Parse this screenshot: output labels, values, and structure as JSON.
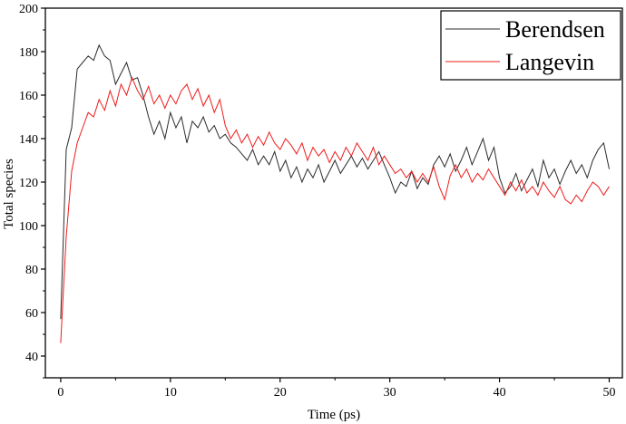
{
  "chart_data": {
    "type": "line",
    "title": "",
    "xlabel": "Time (ps)",
    "ylabel": "Total species",
    "xlim": [
      -1.4,
      51.2
    ],
    "ylim": [
      30,
      200
    ],
    "xticks": [
      0,
      10,
      20,
      30,
      40,
      50
    ],
    "yticks": [
      40,
      60,
      80,
      100,
      120,
      140,
      160,
      180,
      200
    ],
    "grid": false,
    "legend_position": "top-right",
    "x": [
      0,
      0.5,
      1,
      1.5,
      2,
      2.5,
      3,
      3.5,
      4,
      4.5,
      5,
      5.5,
      6,
      6.5,
      7,
      7.5,
      8,
      8.5,
      9,
      9.5,
      10,
      10.5,
      11,
      11.5,
      12,
      12.5,
      13,
      13.5,
      14,
      14.5,
      15,
      15.5,
      16,
      16.5,
      17,
      17.5,
      18,
      18.5,
      19,
      19.5,
      20,
      20.5,
      21,
      21.5,
      22,
      22.5,
      23,
      23.5,
      24,
      24.5,
      25,
      25.5,
      26,
      26.5,
      27,
      27.5,
      28,
      28.5,
      29,
      29.5,
      30,
      30.5,
      31,
      31.5,
      32,
      32.5,
      33,
      33.5,
      34,
      34.5,
      35,
      35.5,
      36,
      36.5,
      37,
      37.5,
      38,
      38.5,
      39,
      39.5,
      40,
      40.5,
      41,
      41.5,
      42,
      42.5,
      43,
      43.5,
      44,
      44.5,
      45,
      45.5,
      46,
      46.5,
      47,
      47.5,
      48,
      48.5,
      49,
      49.5,
      50
    ],
    "series": [
      {
        "name": "Berendsen",
        "color": "#2b2b2b",
        "values": [
          57,
          135,
          145,
          172,
          175,
          178,
          176,
          183,
          178,
          176,
          165,
          170,
          175,
          167,
          168,
          160,
          150,
          142,
          148,
          140,
          152,
          145,
          150,
          138,
          148,
          145,
          150,
          143,
          146,
          140,
          142,
          138,
          136,
          133,
          130,
          135,
          128,
          132,
          128,
          134,
          125,
          130,
          122,
          127,
          120,
          126,
          122,
          128,
          120,
          125,
          130,
          124,
          128,
          132,
          127,
          131,
          126,
          130,
          134,
          128,
          122,
          115,
          120,
          118,
          125,
          117,
          122,
          119,
          128,
          132,
          127,
          133,
          125,
          130,
          136,
          128,
          134,
          140,
          130,
          136,
          122,
          115,
          118,
          124,
          116,
          121,
          126,
          118,
          130,
          122,
          126,
          119,
          125,
          130,
          124,
          128,
          122,
          130,
          135,
          138,
          126
        ]
      },
      {
        "name": "Langevin",
        "color": "#ee1c1c",
        "values": [
          46,
          95,
          125,
          138,
          145,
          152,
          150,
          158,
          153,
          162,
          155,
          165,
          160,
          168,
          162,
          158,
          164,
          156,
          160,
          154,
          160,
          156,
          162,
          165,
          158,
          163,
          155,
          160,
          152,
          158,
          146,
          140,
          144,
          138,
          142,
          136,
          141,
          137,
          143,
          138,
          135,
          140,
          137,
          133,
          138,
          130,
          136,
          132,
          135,
          129,
          134,
          130,
          136,
          132,
          138,
          134,
          130,
          136,
          128,
          132,
          128,
          124,
          126,
          122,
          125,
          120,
          124,
          120,
          127,
          118,
          112,
          123,
          128,
          122,
          126,
          120,
          124,
          121,
          126,
          122,
          118,
          114,
          120,
          116,
          121,
          115,
          118,
          114,
          120,
          116,
          113,
          118,
          112,
          110,
          114,
          111,
          116,
          120,
          118,
          114,
          118
        ]
      }
    ]
  }
}
